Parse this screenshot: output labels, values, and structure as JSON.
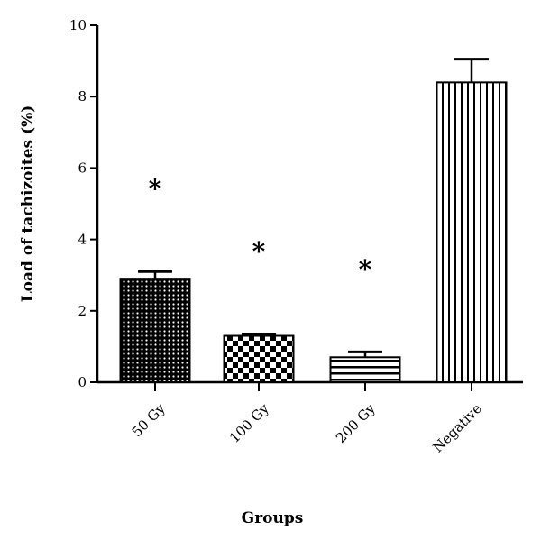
{
  "chart_data": {
    "type": "bar",
    "title": "",
    "xlabel": "Groups",
    "ylabel": "Load of tachizoites (%)",
    "ylim": [
      0,
      10
    ],
    "yticks": [
      "0",
      "2",
      "4",
      "6",
      "8",
      "10"
    ],
    "categories": [
      "50 Gy",
      "100 Gy",
      "200 Gy",
      "Negative"
    ],
    "values": [
      2.9,
      1.3,
      0.7,
      8.4
    ],
    "errors": [
      0.2,
      0.05,
      0.15,
      0.65
    ],
    "annotations": [
      "*",
      "*",
      "*",
      ""
    ],
    "patterns": [
      "dots",
      "checker",
      "horizontal-stripes",
      "vertical-stripes"
    ],
    "bar_color": "#000000",
    "grid": false,
    "legend": "none"
  }
}
